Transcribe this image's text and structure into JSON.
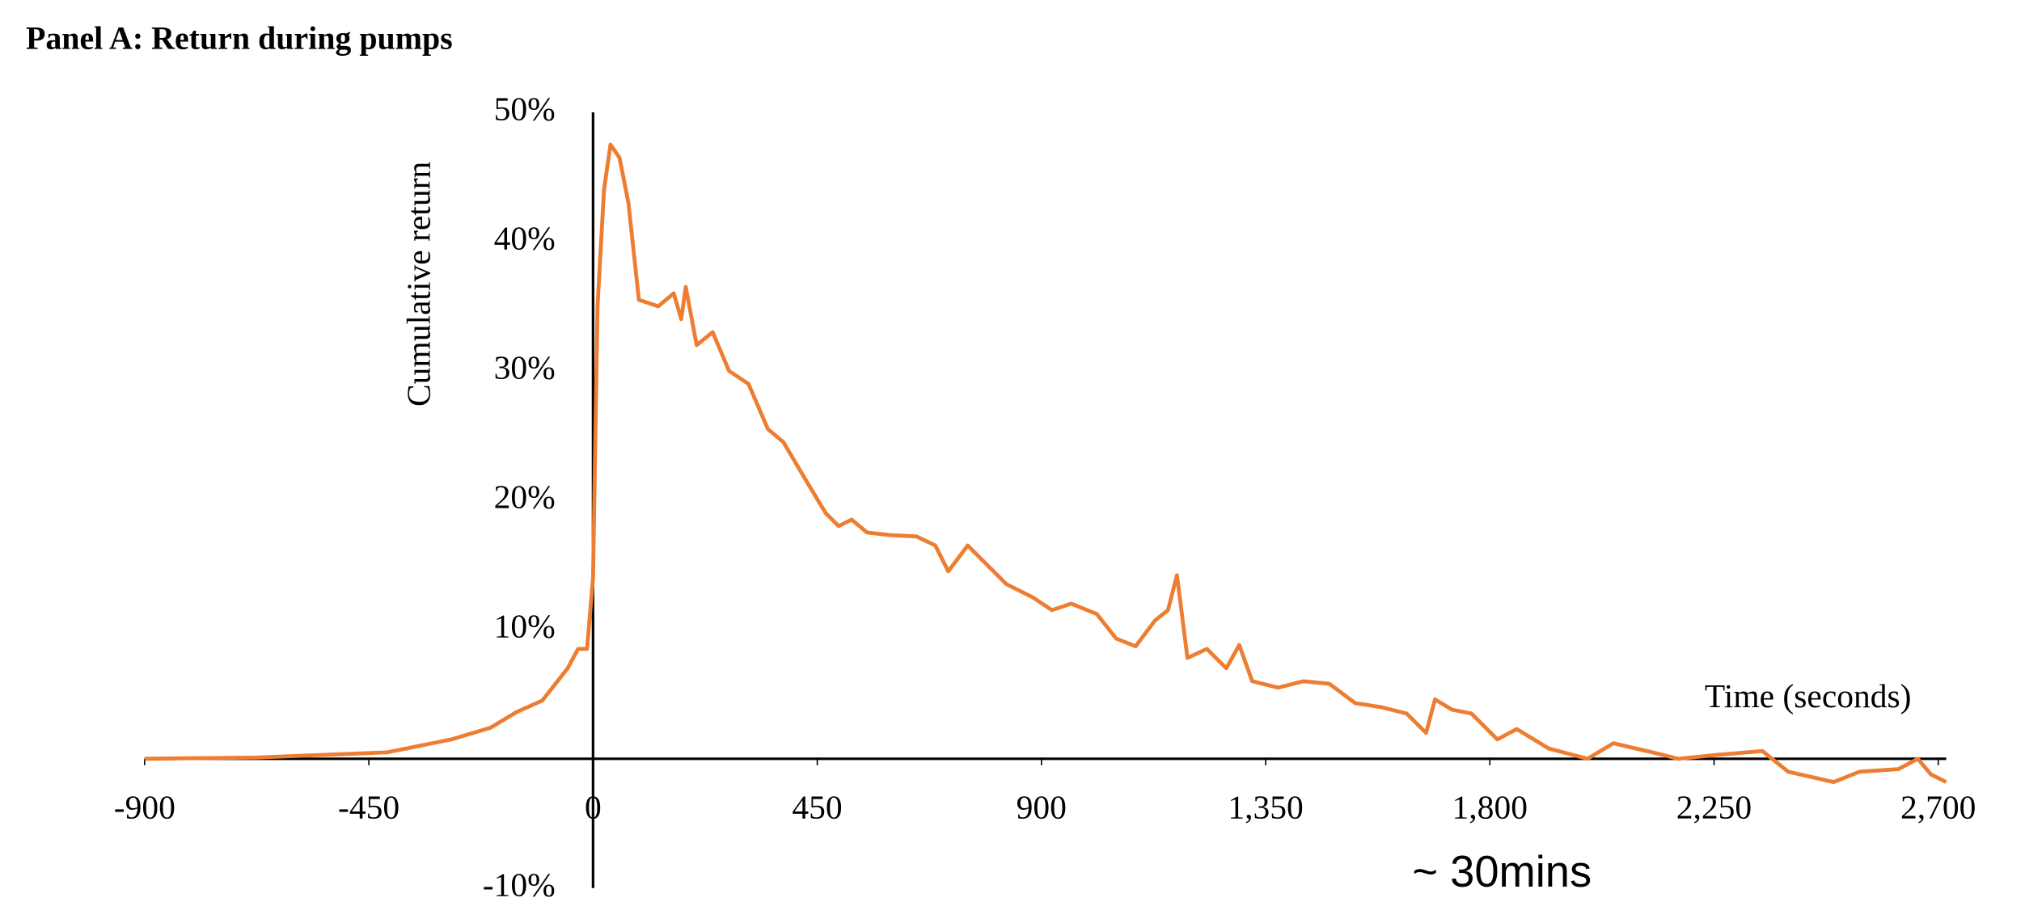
{
  "chart_data": {
    "type": "line",
    "title": "Panel A: Return during pumps",
    "x_label": "Time (seconds)",
    "y_label": "Cumulative return",
    "annotation": "~ 30mins",
    "x": [
      -900,
      -674,
      -413,
      -284,
      -206,
      -154,
      -102,
      -51,
      -30,
      -12,
      0,
      9,
      22,
      35,
      53,
      71,
      92,
      131,
      162,
      177,
      186,
      208,
      240,
      273,
      312,
      351,
      382,
      428,
      467,
      493,
      519,
      550,
      597,
      649,
      687,
      713,
      752,
      791,
      830,
      882,
      921,
      960,
      1011,
      1050,
      1089,
      1128,
      1154,
      1172,
      1193,
      1232,
      1271,
      1297,
      1323,
      1375,
      1426,
      1478,
      1530,
      1581,
      1633,
      1672,
      1690,
      1724,
      1763,
      1815,
      1854,
      1918,
      1996,
      2048,
      2126,
      2178,
      2256,
      2347,
      2399,
      2490,
      2542,
      2620,
      2659,
      2685,
      2716
    ],
    "series": [
      {
        "name": "Cumulative return",
        "color": "#ed7d31",
        "values": [
          0,
          0.1,
          0.5,
          1.5,
          2.4,
          3.6,
          4.5,
          7,
          8.5,
          8.5,
          14,
          35,
          44,
          47.5,
          46.5,
          43,
          35.5,
          35,
          36,
          34,
          36.5,
          32,
          33,
          30,
          29,
          25.5,
          24.5,
          21.5,
          19,
          18,
          18.5,
          17.5,
          17.3,
          17.2,
          16.5,
          14.5,
          16.5,
          15,
          13.5,
          12.5,
          11.5,
          12,
          11.2,
          9.3,
          8.7,
          10.7,
          11.5,
          14.2,
          7.8,
          8.5,
          7,
          8.8,
          6,
          5.5,
          6,
          5.8,
          4.3,
          4,
          3.5,
          2,
          4.6,
          3.8,
          3.5,
          1.5,
          2.3,
          0.8,
          0,
          1.2,
          0.5,
          0,
          0.3,
          0.6,
          -1,
          -1.8,
          -1,
          -0.8,
          0,
          -1.2,
          -1.8
        ]
      }
    ],
    "xlim": [
      -900,
      2716
    ],
    "xticks": [
      -900,
      -450,
      0,
      450,
      900,
      {
        "value": 1350,
        "label": "1,350"
      },
      {
        "value": 1800,
        "label": "1,800"
      },
      {
        "value": 2250,
        "label": "2,250"
      },
      {
        "value": 2700,
        "label": "2,700"
      }
    ],
    "ylim": [
      -10,
      50
    ],
    "yticks": [
      {
        "value": -10,
        "label": "-10%"
      },
      {
        "value": 10,
        "label": "10%"
      },
      {
        "value": 20,
        "label": "20%"
      },
      {
        "value": 30,
        "label": "30%"
      },
      {
        "value": 40,
        "label": "40%"
      },
      {
        "value": 50,
        "label": "50%"
      }
    ],
    "grid": false
  }
}
